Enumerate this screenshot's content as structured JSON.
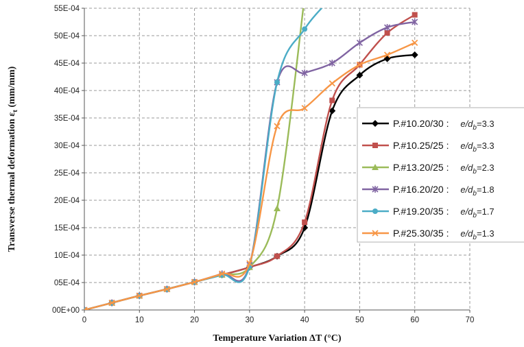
{
  "chart_data": {
    "type": "line",
    "xlabel": "Temperature Variation ΔT (°C)",
    "ylabel": "Transverse thermal deformation ε",
    "ylabel_subscript": "t",
    "ylabel_unit": " (mm/mm)",
    "xlim": [
      0,
      70
    ],
    "ylim": [
      0,
      0.0055
    ],
    "x_ticks": [
      "0",
      "10",
      "20",
      "30",
      "40",
      "50",
      "60",
      "70"
    ],
    "y_ticks": [
      "00E+00",
      "05E-04",
      "10E-04",
      "15E-04",
      "20E-04",
      "25E-04",
      "30E-04",
      "35E-04",
      "40E-04",
      "45E-04",
      "50E-04",
      "55E-04"
    ],
    "grid": true,
    "legend_position": "right",
    "ratio_symbol": "e/d",
    "ratio_subscript": "b",
    "series": [
      {
        "name": "P.#10.20/30 :",
        "ratio": "=3.3",
        "color": "#000000",
        "marker": "diamond",
        "x": [
          0,
          5,
          10,
          15,
          20,
          25,
          30,
          35,
          40,
          45,
          50,
          55,
          60
        ],
        "y": [
          0.0,
          0.00013,
          0.00026,
          0.00038,
          0.00051,
          0.00064,
          0.00078,
          0.00098,
          0.0015,
          0.00363,
          0.00428,
          0.00458,
          0.00465
        ]
      },
      {
        "name": "P.#10.25/25 :",
        "ratio": "=3.3",
        "color": "#c0504d",
        "marker": "square",
        "x": [
          0,
          5,
          10,
          15,
          20,
          25,
          30,
          35,
          40,
          45,
          50,
          55,
          60
        ],
        "y": [
          0.0,
          0.00013,
          0.00026,
          0.00038,
          0.00051,
          0.00064,
          0.00078,
          0.00098,
          0.0016,
          0.00382,
          0.00447,
          0.00505,
          0.00538
        ]
      },
      {
        "name": "P.#13.20/25 :",
        "ratio": "=2.3",
        "color": "#9bbb59",
        "marker": "triangle",
        "x": [
          0,
          5,
          10,
          15,
          20,
          25,
          30,
          35,
          40
        ],
        "y": [
          0.0,
          0.00013,
          0.00026,
          0.00038,
          0.00051,
          0.00064,
          0.00078,
          0.00185,
          0.0057
        ]
      },
      {
        "name": "P.#16.20/20 :",
        "ratio": "=1.8",
        "color": "#8064a2",
        "marker": "star",
        "x": [
          0,
          5,
          10,
          15,
          20,
          25,
          30,
          35,
          40,
          45,
          50,
          55,
          60
        ],
        "y": [
          0.0,
          0.00013,
          0.00026,
          0.00038,
          0.00051,
          0.00066,
          0.00082,
          0.00415,
          0.00432,
          0.0045,
          0.00487,
          0.00515,
          0.00525
        ]
      },
      {
        "name": "P.#19.20/35 :",
        "ratio": "=1.7",
        "color": "#4bacc6",
        "marker": "circle",
        "x": [
          0,
          5,
          10,
          15,
          20,
          25,
          30,
          35,
          40,
          45
        ],
        "y": [
          0.0,
          0.00013,
          0.00026,
          0.00038,
          0.00051,
          0.00064,
          0.0008,
          0.00415,
          0.00512,
          0.0057
        ]
      },
      {
        "name": "P.#25.30/35 :",
        "ratio": "=1.3",
        "color": "#f79646",
        "marker": "x",
        "x": [
          0,
          5,
          10,
          15,
          20,
          25,
          30,
          35,
          40,
          45,
          50,
          55,
          60
        ],
        "y": [
          0.0,
          0.00013,
          0.00026,
          0.00038,
          0.00051,
          0.00066,
          0.00085,
          0.00335,
          0.00368,
          0.00413,
          0.00447,
          0.00465,
          0.00487
        ]
      }
    ]
  }
}
